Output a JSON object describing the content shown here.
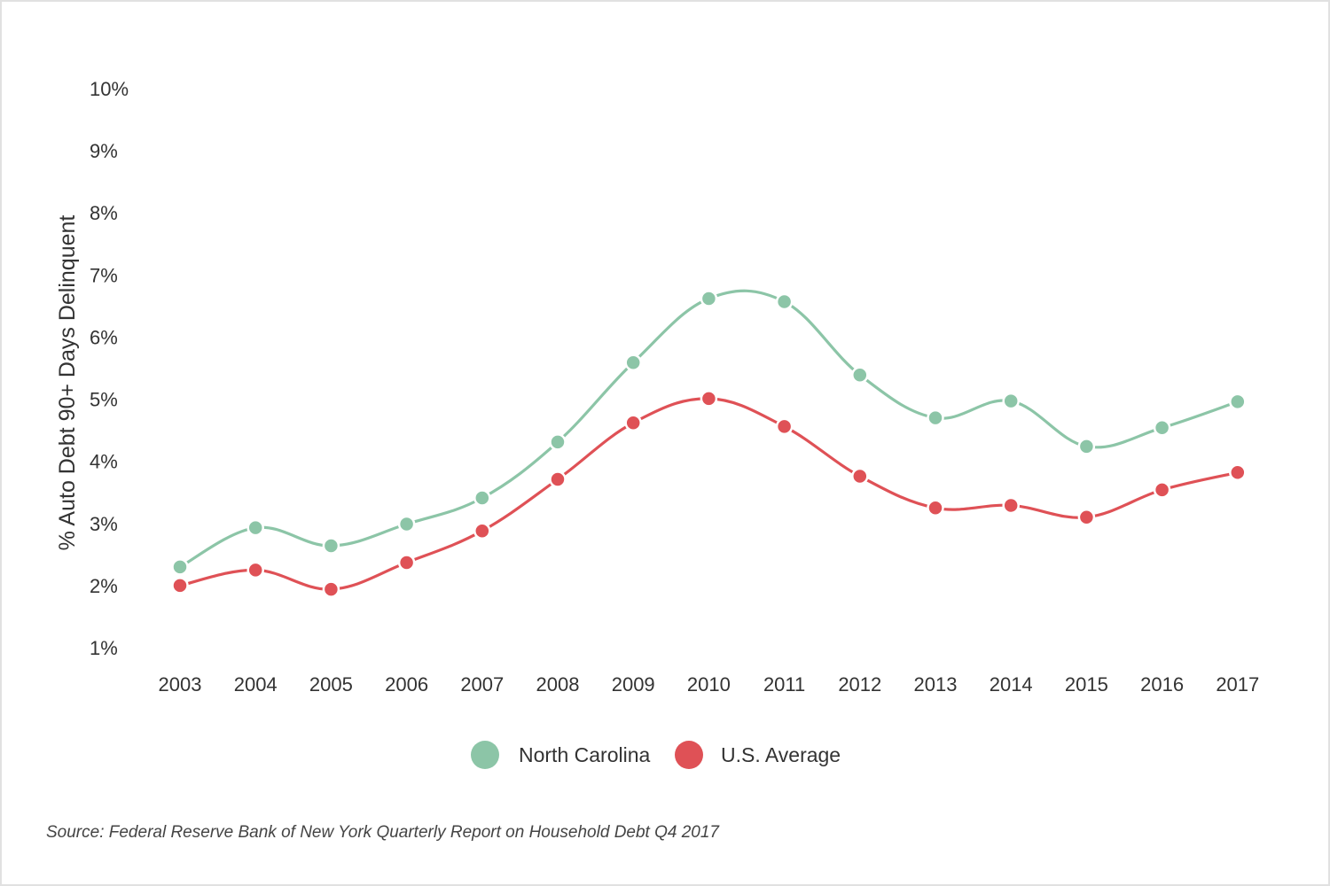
{
  "chart_data": {
    "type": "line",
    "title": "",
    "ylabel": "% Auto Debt 90+ Days Delinquent",
    "xlabel": "",
    "categories": [
      "2003",
      "2004",
      "2005",
      "2006",
      "2007",
      "2008",
      "2009",
      "2010",
      "2011",
      "2012",
      "2013",
      "2014",
      "2015",
      "2016",
      "2017"
    ],
    "y_ticks": [
      "10%",
      "9%",
      "8%",
      "7%",
      "6%",
      "5%",
      "4%",
      "3%",
      "2%",
      "1%"
    ],
    "ylim": [
      1,
      10
    ],
    "grid": false,
    "legend_position": "bottom-center",
    "series": [
      {
        "name": "North Carolina",
        "color": "#8cc5a7",
        "values": [
          2.3,
          2.93,
          2.64,
          2.99,
          3.41,
          4.31,
          5.59,
          6.62,
          6.57,
          5.39,
          4.7,
          4.97,
          4.24,
          4.54,
          4.96
        ]
      },
      {
        "name": "U.S. Average",
        "color": "#df5156",
        "values": [
          2.0,
          2.25,
          1.94,
          2.37,
          2.88,
          3.71,
          4.62,
          5.01,
          4.56,
          3.76,
          3.25,
          3.29,
          3.1,
          3.54,
          3.82
        ]
      }
    ]
  },
  "source_text": "Source: Federal Reserve Bank of New York Quarterly Report on Household Debt Q4 2017"
}
